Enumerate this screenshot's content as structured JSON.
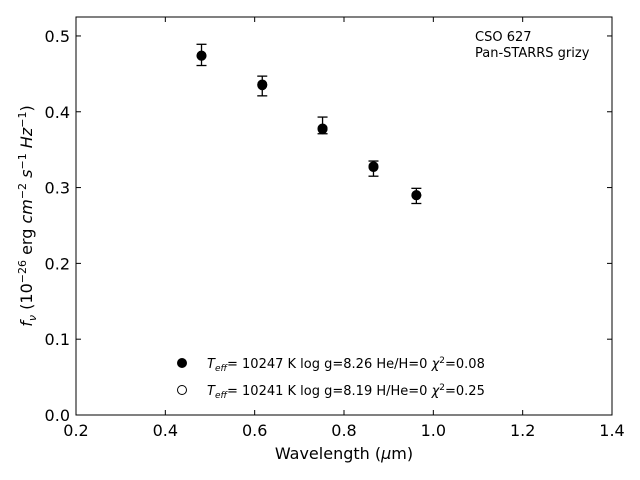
{
  "chart_data": {
    "type": "scatter",
    "annotation": [
      "CSO 627",
      "Pan-STARRS grizy"
    ],
    "xlabel": "Wavelength (μm)",
    "ylabel": "f_ν (10^-26 erg cm^-2 s^-1 Hz^-1)",
    "xlim": [
      0.2,
      1.4
    ],
    "ylim": [
      0.0,
      0.525
    ],
    "xticks": [
      0.2,
      0.4,
      0.6,
      0.8,
      1.0,
      1.2,
      1.4
    ],
    "xtick_labels": [
      "0.2",
      "0.4",
      "0.6",
      "0.8",
      "1.0",
      "1.2",
      "1.4"
    ],
    "yticks": [
      0.0,
      0.1,
      0.2,
      0.3,
      0.4,
      0.5
    ],
    "ytick_labels": [
      "0.0",
      "0.1",
      "0.2",
      "0.3",
      "0.4",
      "0.5"
    ],
    "grid": false,
    "legend_position": "bottom-center",
    "observed": {
      "x": [
        0.481,
        0.617,
        0.752,
        0.866,
        0.962
      ],
      "y": [
        0.475,
        0.434,
        0.382,
        0.325,
        0.289
      ],
      "yerr": [
        0.014,
        0.013,
        0.011,
        0.01,
        0.01
      ]
    },
    "series": [
      {
        "marker": "filled",
        "legend": "T_eff= 10247 K  log g=8.26  He/H=0  χ²=0.08",
        "x": [
          0.481,
          0.617,
          0.752,
          0.866,
          0.962
        ],
        "y": [
          0.474,
          0.436,
          0.377,
          0.327,
          0.29
        ]
      },
      {
        "marker": "open",
        "legend": "T_eff= 10241 K  log g=8.19  H/He=0  χ²=0.25",
        "x": [
          0.481,
          0.617,
          0.752,
          0.866,
          0.962
        ],
        "y": [
          0.474,
          0.435,
          0.378,
          0.328,
          0.29
        ]
      }
    ]
  }
}
